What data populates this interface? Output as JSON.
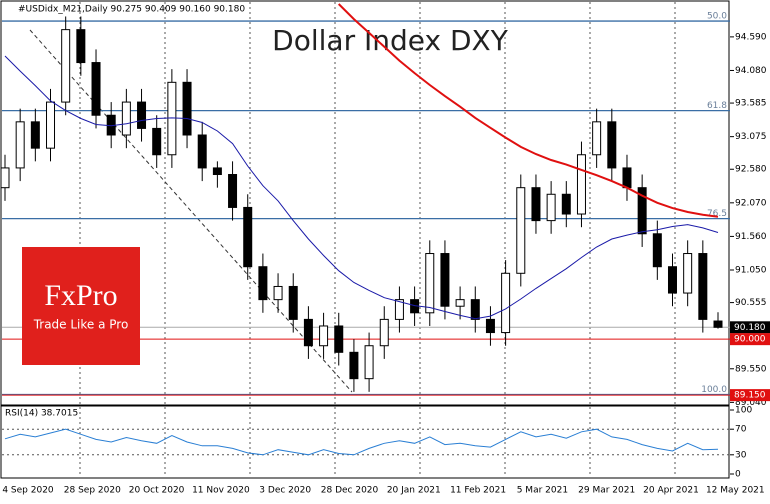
{
  "chart_data": {
    "type": "candlestick",
    "header": "#USDidx_M21,Daily  90.275 90.409 90.160 90.180",
    "title": "Dollar Index DXY",
    "logo": {
      "brand": "FxPro",
      "slogan": "Trade Like a Pro"
    },
    "candles": [
      [
        92.3,
        92.8,
        92.1,
        92.6
      ],
      [
        92.6,
        93.5,
        92.4,
        93.3
      ],
      [
        93.3,
        93.5,
        92.7,
        92.9
      ],
      [
        92.9,
        93.8,
        92.7,
        93.6
      ],
      [
        93.6,
        94.9,
        93.4,
        94.7
      ],
      [
        94.7,
        94.9,
        94.0,
        94.2
      ],
      [
        94.2,
        94.4,
        93.2,
        93.4
      ],
      [
        93.4,
        93.6,
        92.9,
        93.1
      ],
      [
        93.1,
        93.8,
        92.9,
        93.6
      ],
      [
        93.6,
        93.8,
        93.0,
        93.2
      ],
      [
        93.2,
        93.4,
        92.6,
        92.8
      ],
      [
        92.8,
        94.1,
        92.6,
        93.9
      ],
      [
        93.9,
        94.1,
        92.9,
        93.1
      ],
      [
        93.1,
        93.3,
        92.4,
        92.6
      ],
      [
        92.6,
        92.7,
        92.3,
        92.5
      ],
      [
        92.5,
        92.7,
        91.8,
        92.0
      ],
      [
        92.0,
        92.2,
        90.9,
        91.1
      ],
      [
        91.1,
        91.3,
        90.4,
        90.6
      ],
      [
        90.6,
        91.0,
        90.4,
        90.8
      ],
      [
        90.8,
        91.0,
        90.1,
        90.3
      ],
      [
        90.3,
        90.5,
        89.7,
        89.9
      ],
      [
        89.9,
        90.4,
        89.7,
        90.2
      ],
      [
        90.2,
        90.4,
        89.6,
        89.8
      ],
      [
        89.8,
        90.0,
        89.2,
        89.4
      ],
      [
        89.4,
        90.1,
        89.2,
        89.9
      ],
      [
        89.9,
        90.5,
        89.7,
        90.3
      ],
      [
        90.3,
        90.8,
        90.1,
        90.6
      ],
      [
        90.6,
        90.8,
        90.2,
        90.4
      ],
      [
        90.4,
        91.5,
        90.2,
        91.3
      ],
      [
        91.3,
        91.5,
        90.3,
        90.5
      ],
      [
        90.5,
        90.8,
        90.3,
        90.6
      ],
      [
        90.6,
        90.8,
        90.1,
        90.3
      ],
      [
        90.3,
        90.5,
        89.9,
        90.1
      ],
      [
        90.1,
        91.2,
        89.9,
        91.0
      ],
      [
        91.0,
        92.5,
        90.8,
        92.3
      ],
      [
        92.3,
        92.5,
        91.6,
        91.8
      ],
      [
        91.8,
        92.4,
        91.6,
        92.2
      ],
      [
        92.2,
        92.4,
        91.7,
        91.9
      ],
      [
        91.9,
        93.0,
        91.7,
        92.8
      ],
      [
        92.8,
        93.5,
        92.6,
        93.3
      ],
      [
        93.3,
        93.5,
        92.4,
        92.6
      ],
      [
        92.6,
        92.8,
        92.1,
        92.3
      ],
      [
        92.3,
        92.5,
        91.4,
        91.6
      ],
      [
        91.6,
        91.8,
        90.9,
        91.1
      ],
      [
        91.1,
        91.3,
        90.5,
        90.7
      ],
      [
        90.7,
        91.5,
        90.5,
        91.3
      ],
      [
        91.3,
        91.5,
        90.1,
        90.3
      ],
      [
        90.275,
        90.409,
        90.16,
        90.18
      ]
    ],
    "series": [
      {
        "name": "MA blue",
        "color": "#1a1aa8",
        "values": [
          94.3,
          94.07,
          93.85,
          93.62,
          93.47,
          93.35,
          93.26,
          93.24,
          93.27,
          93.32,
          93.35,
          93.36,
          93.35,
          93.29,
          93.16,
          92.97,
          92.63,
          92.33,
          92.1,
          91.8,
          91.52,
          91.27,
          91.04,
          90.86,
          90.74,
          90.63,
          90.57,
          90.51,
          90.48,
          90.42,
          90.36,
          90.31,
          90.35,
          90.46,
          90.61,
          90.77,
          90.92,
          91.07,
          91.24,
          91.4,
          91.52,
          91.58,
          91.63,
          91.66,
          91.71,
          91.74,
          91.69,
          91.62
        ]
      },
      {
        "name": "MA red",
        "color": "#e01010",
        "values": [
          null,
          null,
          null,
          null,
          null,
          null,
          null,
          null,
          null,
          null,
          null,
          null,
          null,
          null,
          null,
          null,
          null,
          null,
          null,
          null,
          null,
          null,
          95.09,
          94.86,
          94.65,
          94.44,
          94.23,
          94.04,
          93.86,
          93.69,
          93.53,
          93.36,
          93.21,
          93.06,
          92.92,
          92.81,
          92.72,
          92.65,
          92.57,
          92.49,
          92.4,
          92.3,
          92.18,
          92.07,
          91.99,
          91.93,
          91.89,
          91.86
        ]
      }
    ],
    "ylim": [
      89.0,
      95.15
    ],
    "yticks": [
      {
        "value": 94.59,
        "label": "94.590"
      },
      {
        "value": 94.08,
        "label": "94.080"
      },
      {
        "value": 93.585,
        "label": "93.585"
      },
      {
        "value": 93.075,
        "label": "93.075"
      },
      {
        "value": 92.58,
        "label": "92.580"
      },
      {
        "value": 92.07,
        "label": "92.070"
      },
      {
        "value": 91.56,
        "label": "91.560"
      },
      {
        "value": 91.05,
        "label": "91.050"
      },
      {
        "value": 90.555,
        "label": "90.555"
      },
      {
        "value": 89.55,
        "label": "89.550"
      },
      {
        "value": 89.04,
        "label": "89.040"
      }
    ],
    "fib_levels": [
      {
        "value": 94.83,
        "label": "50.0"
      },
      {
        "value": 93.47,
        "label": "61.8"
      },
      {
        "value": 91.83,
        "label": "76.5"
      },
      {
        "value": 89.16,
        "label": "100.0"
      }
    ],
    "price_lines": [
      {
        "value": 90.18,
        "label": "90.180",
        "color": "#000000"
      },
      {
        "value": 90.0,
        "label": "90.000",
        "color": "#e01010"
      },
      {
        "value": 89.15,
        "label": "89.150",
        "color": "#e01010"
      }
    ],
    "rsi": {
      "label": "RSI(14) 38.7015",
      "color": "#2a7fd4",
      "ylim": [
        0,
        100
      ],
      "yticks": [
        100,
        70,
        30,
        0
      ],
      "levels": [
        70,
        30
      ],
      "values": [
        55,
        62,
        58,
        64,
        70,
        62,
        54,
        50,
        57,
        52,
        48,
        60,
        50,
        44,
        44,
        40,
        33,
        30,
        38,
        34,
        30,
        38,
        32,
        30,
        40,
        48,
        52,
        48,
        58,
        46,
        48,
        44,
        42,
        54,
        66,
        58,
        62,
        56,
        66,
        70,
        58,
        54,
        46,
        40,
        36,
        48,
        38,
        38.7015
      ]
    },
    "x_labels": [
      "4 Sep 2020",
      "28 Sep 2020",
      "20 Oct 2020",
      "11 Nov 2020",
      "3 Dec 2020",
      "28 Dec 2020",
      "20 Jan 2021",
      "11 Feb 2021",
      "5 Mar 2021",
      "29 Mar 2021",
      "20 Apr 2021",
      "12 May 2021"
    ]
  }
}
